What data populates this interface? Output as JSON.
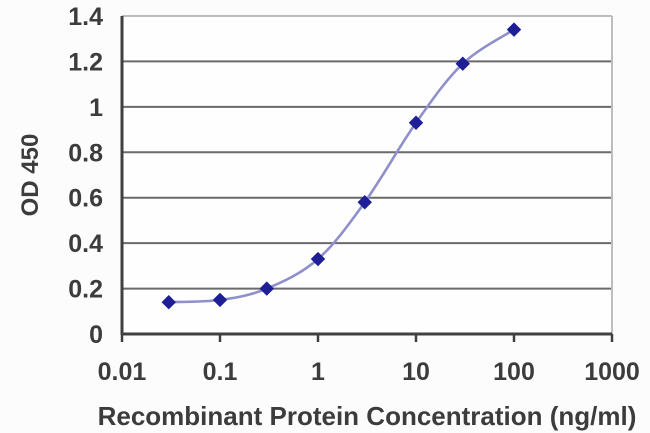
{
  "chart_data": {
    "type": "line",
    "title": "",
    "x": [
      0.03,
      0.1,
      0.3,
      1,
      3,
      10,
      30,
      100
    ],
    "y": [
      0.14,
      0.15,
      0.2,
      0.33,
      0.58,
      0.93,
      1.19,
      1.34
    ],
    "xlabel": "Recombinant Protein Concentration (ng/ml)",
    "ylabel": "OD 450",
    "x_scale": "log",
    "xlim": [
      0.01,
      1000
    ],
    "ylim": [
      0,
      1.4
    ],
    "x_tick_labels": [
      "0.01",
      "0.1",
      "1",
      "10",
      "100",
      "1000"
    ],
    "x_tick_values": [
      0.01,
      0.1,
      1,
      10,
      100,
      1000
    ],
    "y_tick_labels": [
      "0",
      "0.2",
      "0.4",
      "0.6",
      "0.8",
      "1",
      "1.2",
      "1.4"
    ],
    "y_tick_values": [
      0,
      0.2,
      0.4,
      0.6,
      0.8,
      1,
      1.2,
      1.4
    ],
    "grid": "horizontal",
    "legend": false,
    "marker": "diamond",
    "colors": {
      "line": "#8f8fcc",
      "marker": "#1e1e96",
      "grid": "#6a6a6a",
      "axis": "#404040",
      "border_light": "#bdbdbd",
      "text": "#3c3c3c",
      "background": "#fcfcfc",
      "plot_background": "#fefefe"
    }
  }
}
